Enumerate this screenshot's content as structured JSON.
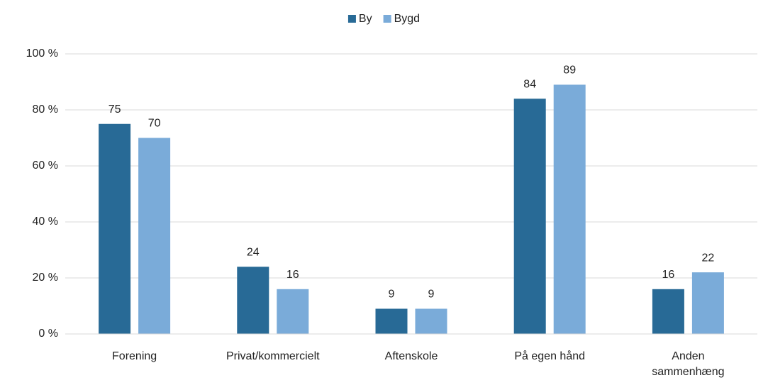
{
  "chart_data": {
    "type": "bar",
    "categories": [
      "Forening",
      "Privat/kommercielt",
      "Aftenskole",
      "På egen hånd",
      "Anden sammenhæng"
    ],
    "series": [
      {
        "name": "By",
        "color": "#286a96",
        "values": [
          75,
          24,
          9,
          84,
          16
        ]
      },
      {
        "name": "Bygd",
        "color": "#7aabd9",
        "values": [
          70,
          16,
          9,
          89,
          22
        ]
      }
    ],
    "ylim": [
      0,
      100
    ],
    "yticks": [
      {
        "value": 0,
        "label": "0 %"
      },
      {
        "value": 20,
        "label": "20 %"
      },
      {
        "value": 40,
        "label": "40 %"
      },
      {
        "value": 60,
        "label": "60 %"
      },
      {
        "value": 80,
        "label": "80 %"
      },
      {
        "value": 100,
        "label": "100 %"
      }
    ],
    "grid": true,
    "legend": "top"
  }
}
